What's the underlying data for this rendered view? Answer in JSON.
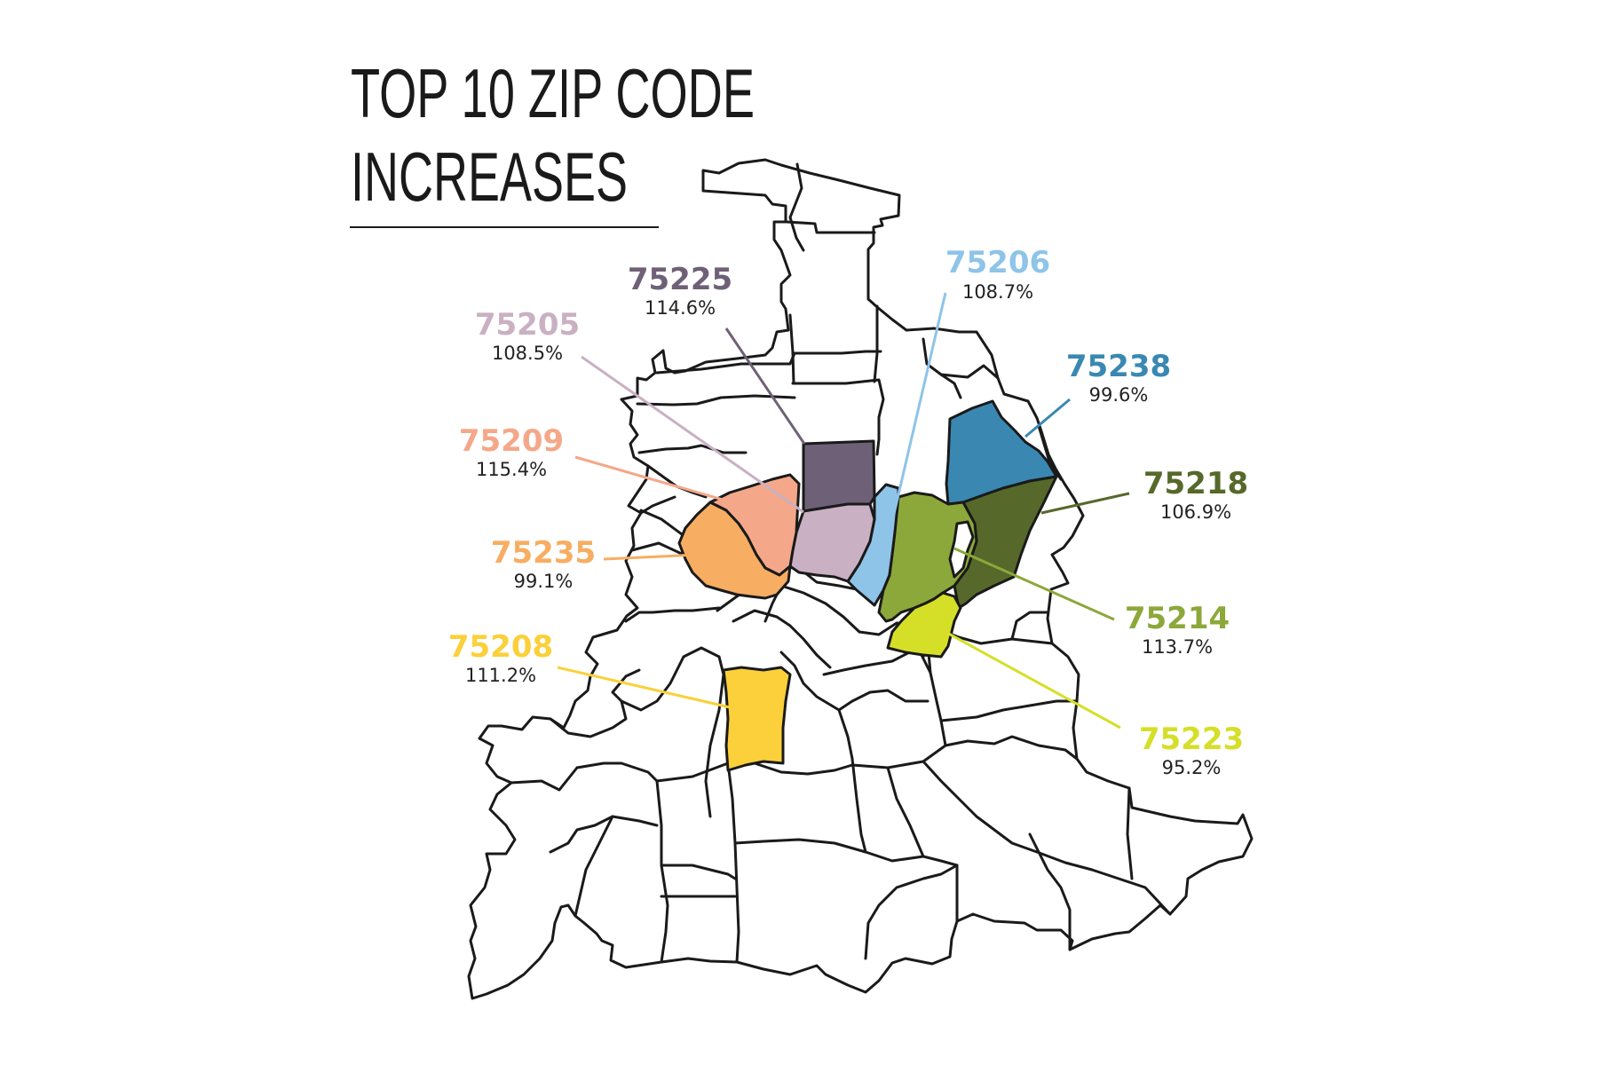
{
  "title": {
    "line1": "TOP 10 ZIP CODE",
    "line2": "INCREASES"
  },
  "zips": [
    {
      "id": "z75225",
      "code": "75225",
      "pct": "114.6%",
      "color": "#6e6177"
    },
    {
      "id": "z75206",
      "code": "75206",
      "pct": "108.7%",
      "color": "#8ec4e8"
    },
    {
      "id": "z75205",
      "code": "75205",
      "pct": "108.5%",
      "color": "#c9b0c2"
    },
    {
      "id": "z75238",
      "code": "75238",
      "pct": "99.6%",
      "color": "#3a88b2"
    },
    {
      "id": "z75209",
      "code": "75209",
      "pct": "115.4%",
      "color": "#f4a889"
    },
    {
      "id": "z75218",
      "code": "75218",
      "pct": "106.9%",
      "color": "#56692a"
    },
    {
      "id": "z75235",
      "code": "75235",
      "pct": "99.1%",
      "color": "#f7ad62"
    },
    {
      "id": "z75214",
      "code": "75214",
      "pct": "113.7%",
      "color": "#8ca83a"
    },
    {
      "id": "z75208",
      "code": "75208",
      "pct": "111.2%",
      "color": "#fbd03a"
    },
    {
      "id": "z75223",
      "code": "75223",
      "pct": "95.2%",
      "color": "#d6df28"
    }
  ]
}
